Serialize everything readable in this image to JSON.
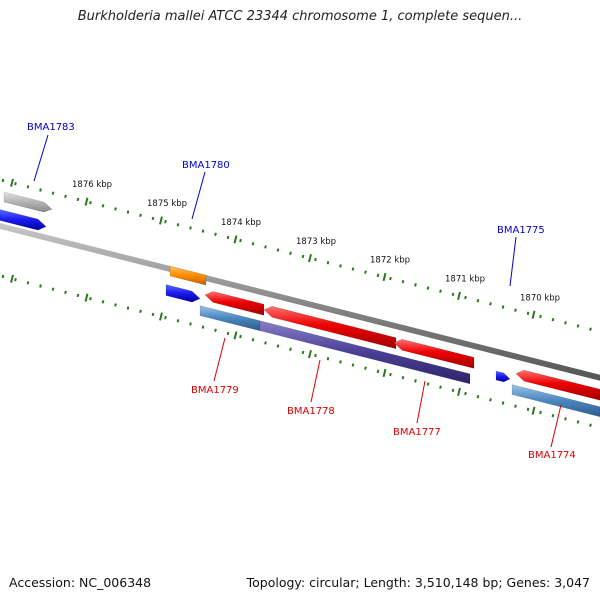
{
  "title": "Burkholderia mallei ATCC 23344 chromosome 1, complete sequen...",
  "accession": "Accession: NC_006348",
  "summary": "Topology: circular; Length: 3,510,148 bp; Genes: 3,047",
  "colors": {
    "forward_label": "#0000cc",
    "reverse_label": "#dd0000",
    "backbone": "#888888",
    "ticks": "#2a7a1a"
  },
  "ticks": [
    {
      "label": "1876 kbp"
    },
    {
      "label": "1875 kbp"
    },
    {
      "label": "1874 kbp"
    },
    {
      "label": "1873 kbp"
    },
    {
      "label": "1872 kbp"
    },
    {
      "label": "1871 kbp"
    },
    {
      "label": "1870 kbp"
    }
  ],
  "genes": [
    {
      "id": "BMA1783",
      "label": "BMA1783",
      "strand": "forward"
    },
    {
      "id": "BMA1780",
      "label": "BMA1780",
      "strand": "forward"
    },
    {
      "id": "BMA1775",
      "label": "BMA1775",
      "strand": "forward"
    },
    {
      "id": "BMA1779",
      "label": "BMA1779",
      "strand": "reverse"
    },
    {
      "id": "BMA1778",
      "label": "BMA1778",
      "strand": "reverse"
    },
    {
      "id": "BMA1777",
      "label": "BMA1777",
      "strand": "reverse"
    },
    {
      "id": "BMA1774",
      "label": "BMA1774",
      "strand": "reverse"
    }
  ]
}
